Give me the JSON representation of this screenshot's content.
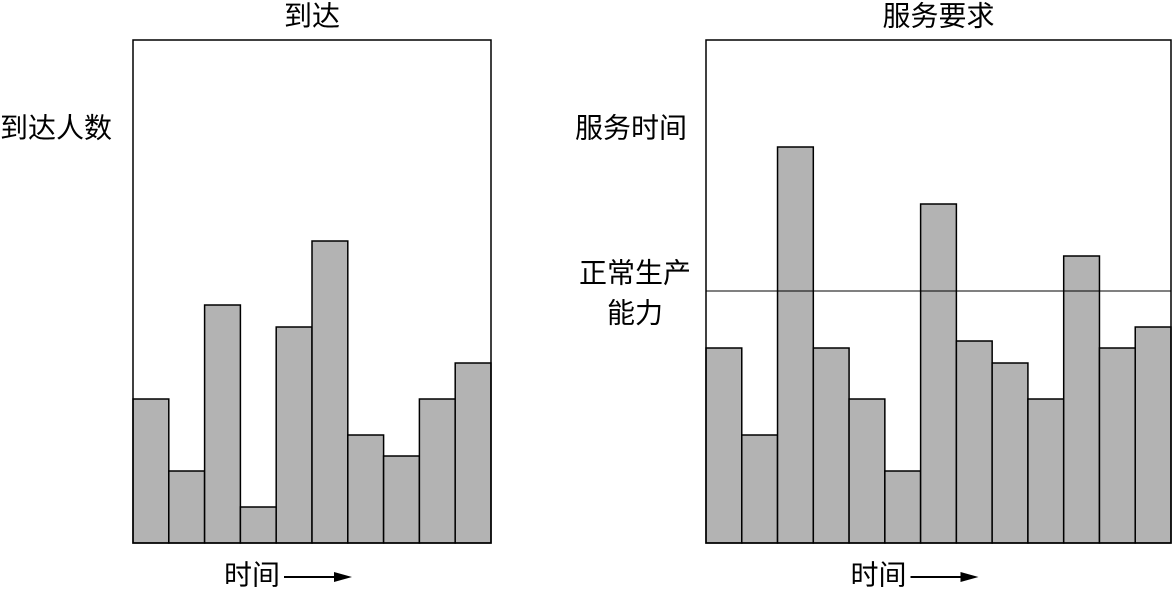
{
  "chart_data": [
    {
      "type": "bar",
      "title": "到达",
      "y_label": "到达人数",
      "x_label": "时间",
      "values": [
        144,
        72,
        238,
        36,
        216,
        302,
        108,
        87,
        144,
        180
      ],
      "color": "#b3b3b3",
      "ylim": [
        0,
        503
      ]
    },
    {
      "type": "bar",
      "title": "服务要求",
      "y_label": "服务时间",
      "x_label": "时间",
      "values": [
        195,
        108,
        396,
        195,
        144,
        72,
        339,
        202,
        180,
        144,
        287,
        195,
        216
      ],
      "color": "#b3b3b3",
      "ylim": [
        0,
        503
      ],
      "reference_line": {
        "label": [
          "正常生产",
          "能力"
        ],
        "value": 252
      }
    }
  ]
}
